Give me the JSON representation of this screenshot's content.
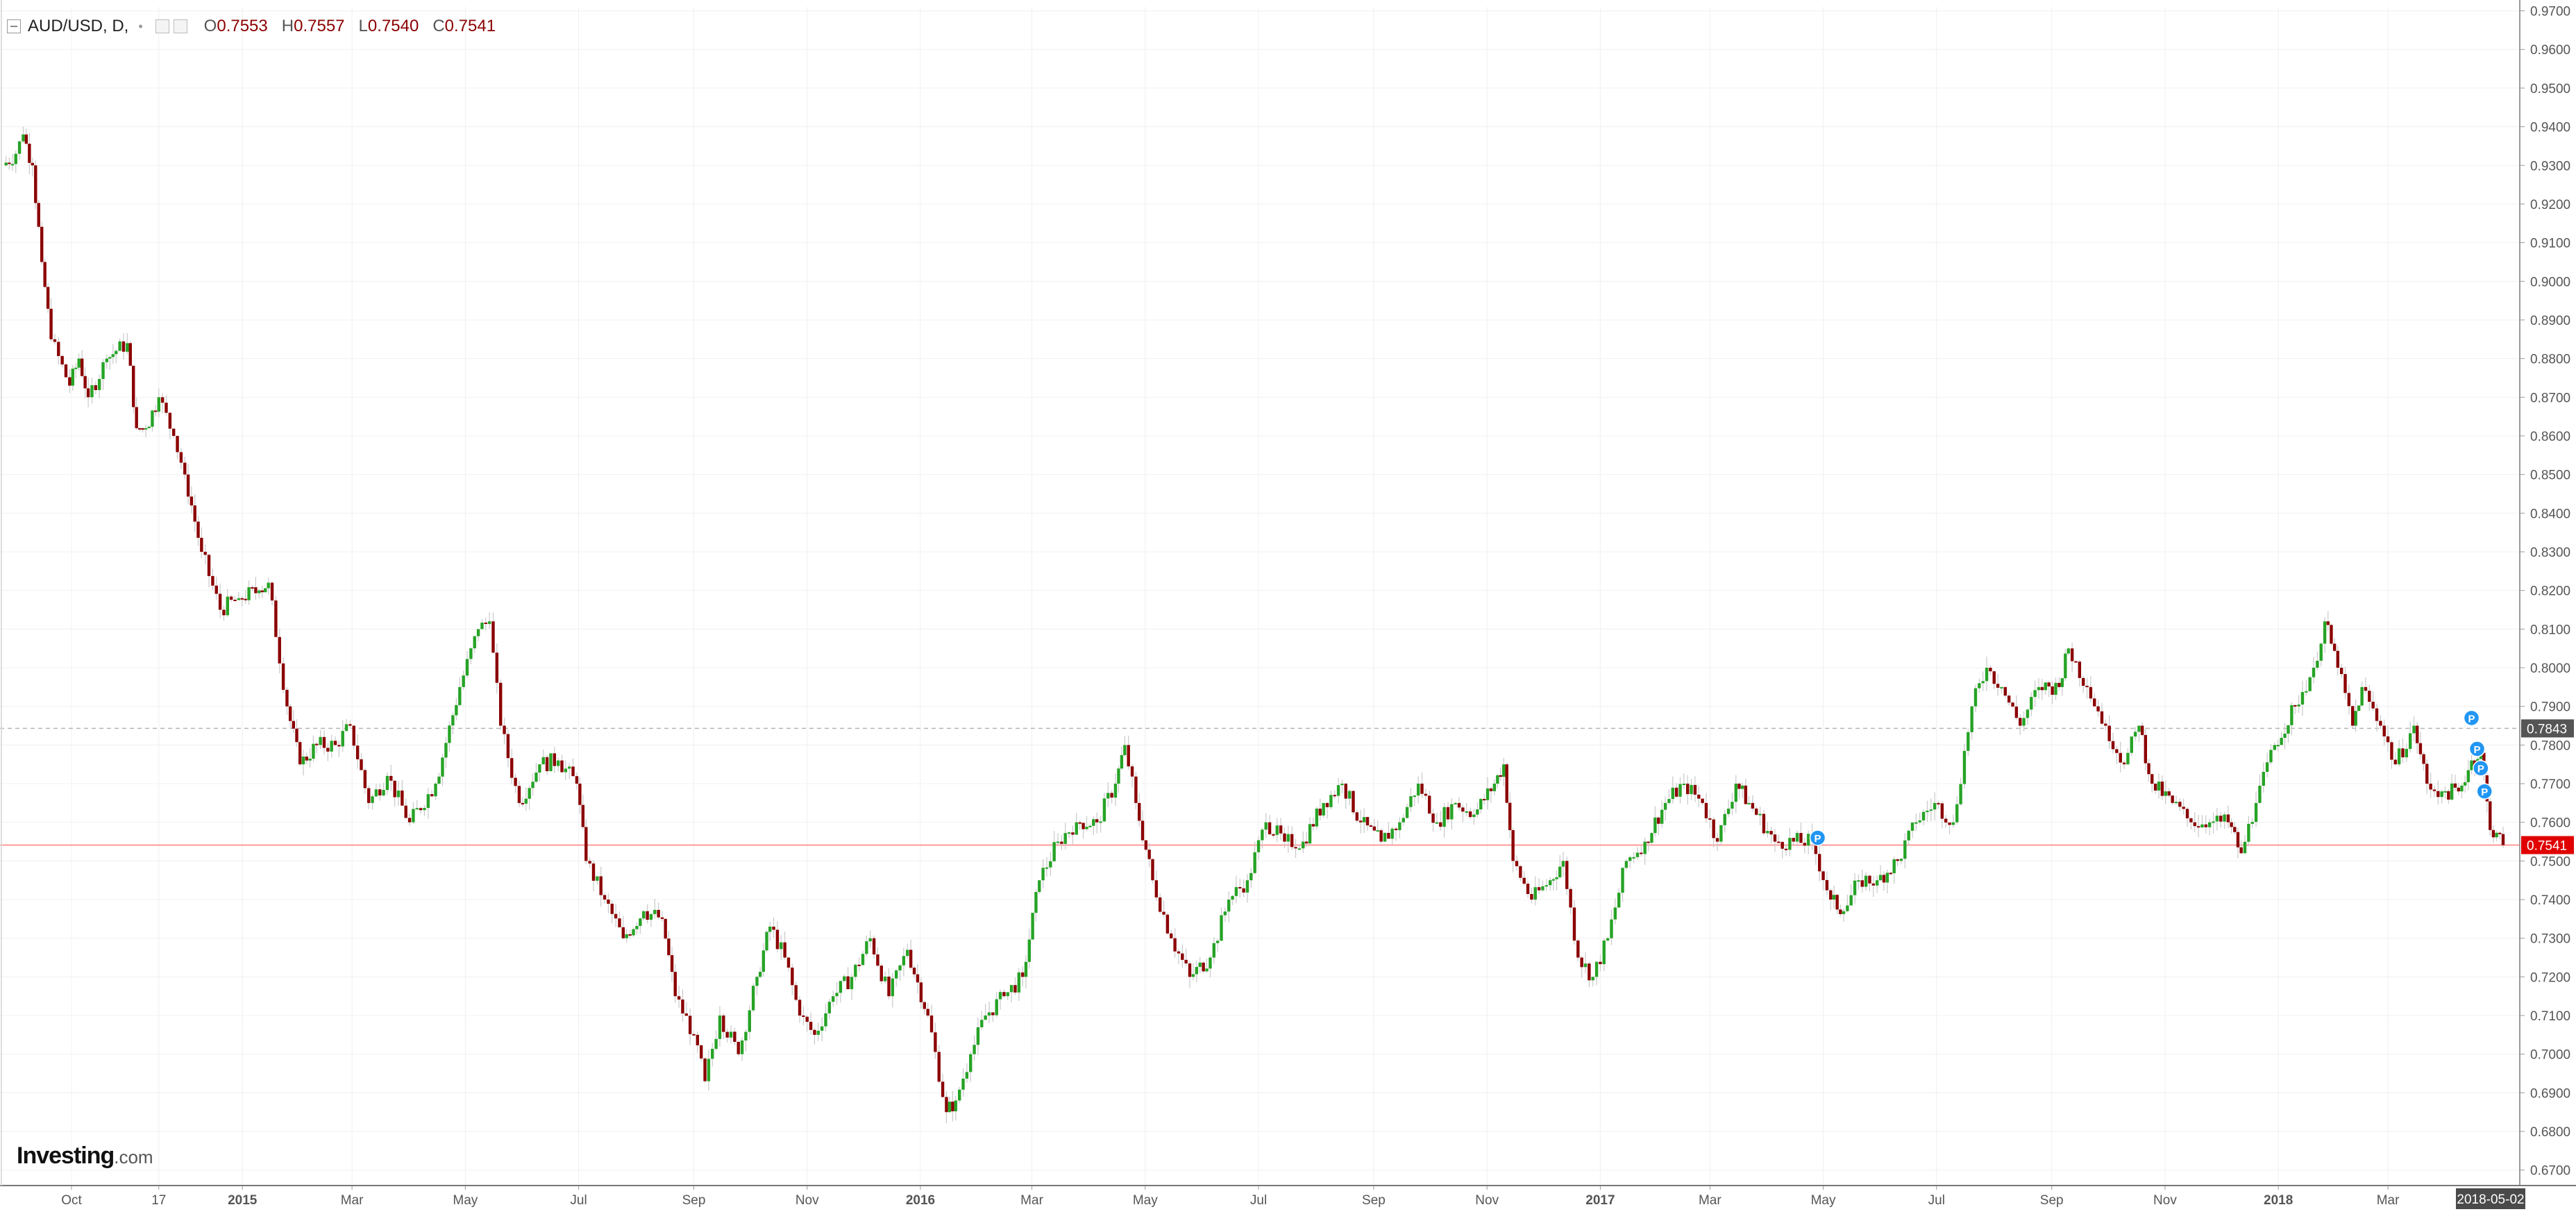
{
  "legend": {
    "symbol": "AUD/USD, D,",
    "open_label": "O",
    "open": "0.7553",
    "high_label": "H",
    "high": "0.7557",
    "low_label": "L",
    "low": "0.7540",
    "close_label": "C",
    "close": "0.7541"
  },
  "logo": {
    "brand": "Investing",
    "suffix": ".com"
  },
  "chart_data": {
    "type": "candlestick",
    "title": "AUD/USD, D,",
    "instrument": "AUD/USD",
    "interval": "D",
    "ylim": [
      0.666,
      0.971
    ],
    "y_axis_side": "right",
    "y_ticks": [
      "0.6700",
      "0.6800",
      "0.6900",
      "0.7000",
      "0.7100",
      "0.7200",
      "0.7300",
      "0.7400",
      "0.7500",
      "0.7600",
      "0.7700",
      "0.7800",
      "0.7900",
      "0.8000",
      "0.8100",
      "0.8200",
      "0.8300",
      "0.8400",
      "0.8500",
      "0.8600",
      "0.8700",
      "0.8800",
      "0.8900",
      "0.9000",
      "0.9100",
      "0.9200",
      "0.9300",
      "0.9400",
      "0.9500",
      "0.9600",
      "0.9700"
    ],
    "x_axis": {
      "start": "2014-08-25",
      "end": "2018-05-02",
      "labels": [
        {
          "date": "2014-10-01",
          "text": "Oct",
          "bold": false
        },
        {
          "date": "2014-11-17",
          "text": "17",
          "bold": false
        },
        {
          "date": "2015-01-01",
          "text": "2015",
          "bold": true
        },
        {
          "date": "2015-03-01",
          "text": "Mar",
          "bold": false
        },
        {
          "date": "2015-05-01",
          "text": "May",
          "bold": false
        },
        {
          "date": "2015-07-01",
          "text": "Jul",
          "bold": false
        },
        {
          "date": "2015-09-01",
          "text": "Sep",
          "bold": false
        },
        {
          "date": "2015-11-01",
          "text": "Nov",
          "bold": false
        },
        {
          "date": "2016-01-01",
          "text": "2016",
          "bold": true
        },
        {
          "date": "2016-03-01",
          "text": "Mar",
          "bold": false
        },
        {
          "date": "2016-05-01",
          "text": "May",
          "bold": false
        },
        {
          "date": "2016-07-01",
          "text": "Jul",
          "bold": false
        },
        {
          "date": "2016-09-01",
          "text": "Sep",
          "bold": false
        },
        {
          "date": "2016-11-01",
          "text": "Nov",
          "bold": false
        },
        {
          "date": "2017-01-01",
          "text": "2017",
          "bold": true
        },
        {
          "date": "2017-03-01",
          "text": "Mar",
          "bold": false
        },
        {
          "date": "2017-05-01",
          "text": "May",
          "bold": false
        },
        {
          "date": "2017-07-01",
          "text": "Jul",
          "bold": false
        },
        {
          "date": "2017-09-01",
          "text": "Sep",
          "bold": false
        },
        {
          "date": "2017-11-01",
          "text": "Nov",
          "bold": false
        },
        {
          "date": "2018-01-01",
          "text": "2018",
          "bold": true
        },
        {
          "date": "2018-03-01",
          "text": "Mar",
          "bold": false
        }
      ],
      "current_label": "2018-05-02"
    },
    "grid": true,
    "last_price": {
      "value": 0.7541,
      "label": "0.7541",
      "color": "#e00000"
    },
    "reference_price": {
      "value": 0.7843,
      "label": "0.7843",
      "color": "#555555"
    },
    "colors": {
      "up": "#26a326",
      "down": "#8b0000",
      "wick": "#c8c8c8",
      "grid": "#f0f0f0",
      "axis_text": "#555555",
      "marker": "#2196f3",
      "last_line": "#ff9a9a",
      "ref_line": "#b5b5b5"
    },
    "markers": [
      {
        "date": "2017-04-28",
        "price": 0.756,
        "text": "P"
      },
      {
        "date": "2018-04-15",
        "price": 0.787,
        "text": "P"
      },
      {
        "date": "2018-04-18",
        "price": 0.779,
        "text": "P"
      },
      {
        "date": "2018-04-20",
        "price": 0.774,
        "text": "P"
      },
      {
        "date": "2018-04-22",
        "price": 0.768,
        "text": "P"
      }
    ],
    "price_path": [
      {
        "date": "2014-08-25",
        "close": 0.93
      },
      {
        "date": "2014-09-01",
        "close": 0.933
      },
      {
        "date": "2014-09-05",
        "close": 0.938
      },
      {
        "date": "2014-09-10",
        "close": 0.93
      },
      {
        "date": "2014-09-15",
        "close": 0.905
      },
      {
        "date": "2014-09-20",
        "close": 0.885
      },
      {
        "date": "2014-09-30",
        "close": 0.873
      },
      {
        "date": "2014-10-05",
        "close": 0.88
      },
      {
        "date": "2014-10-10",
        "close": 0.87
      },
      {
        "date": "2014-10-20",
        "close": 0.88
      },
      {
        "date": "2014-10-25",
        "close": 0.882
      },
      {
        "date": "2014-10-31",
        "close": 0.884
      },
      {
        "date": "2014-11-05",
        "close": 0.862
      },
      {
        "date": "2014-11-10",
        "close": 0.862
      },
      {
        "date": "2014-11-17",
        "close": 0.87
      },
      {
        "date": "2014-11-25",
        "close": 0.86
      },
      {
        "date": "2014-12-01",
        "close": 0.85
      },
      {
        "date": "2014-12-10",
        "close": 0.83
      },
      {
        "date": "2014-12-20",
        "close": 0.815
      },
      {
        "date": "2014-12-30",
        "close": 0.818
      },
      {
        "date": "2015-01-10",
        "close": 0.82
      },
      {
        "date": "2015-01-15",
        "close": 0.822
      },
      {
        "date": "2015-01-25",
        "close": 0.79
      },
      {
        "date": "2015-02-01",
        "close": 0.775
      },
      {
        "date": "2015-02-10",
        "close": 0.78
      },
      {
        "date": "2015-02-20",
        "close": 0.78
      },
      {
        "date": "2015-02-28",
        "close": 0.785
      },
      {
        "date": "2015-03-10",
        "close": 0.765
      },
      {
        "date": "2015-03-20",
        "close": 0.772
      },
      {
        "date": "2015-04-01",
        "close": 0.76
      },
      {
        "date": "2015-04-15",
        "close": 0.77
      },
      {
        "date": "2015-04-28",
        "close": 0.795
      },
      {
        "date": "2015-05-08",
        "close": 0.81
      },
      {
        "date": "2015-05-14",
        "close": 0.812
      },
      {
        "date": "2015-05-20",
        "close": 0.785
      },
      {
        "date": "2015-05-30",
        "close": 0.765
      },
      {
        "date": "2015-06-10",
        "close": 0.775
      },
      {
        "date": "2015-06-20",
        "close": 0.776
      },
      {
        "date": "2015-06-30",
        "close": 0.77
      },
      {
        "date": "2015-07-05",
        "close": 0.75
      },
      {
        "date": "2015-07-15",
        "close": 0.74
      },
      {
        "date": "2015-07-25",
        "close": 0.73
      },
      {
        "date": "2015-08-05",
        "close": 0.737
      },
      {
        "date": "2015-08-15",
        "close": 0.735
      },
      {
        "date": "2015-08-22",
        "close": 0.715
      },
      {
        "date": "2015-09-01",
        "close": 0.705
      },
      {
        "date": "2015-09-07",
        "close": 0.693
      },
      {
        "date": "2015-09-15",
        "close": 0.71
      },
      {
        "date": "2015-09-25",
        "close": 0.7
      },
      {
        "date": "2015-10-05",
        "close": 0.72
      },
      {
        "date": "2015-10-12",
        "close": 0.733
      },
      {
        "date": "2015-10-20",
        "close": 0.725
      },
      {
        "date": "2015-10-28",
        "close": 0.71
      },
      {
        "date": "2015-11-05",
        "close": 0.705
      },
      {
        "date": "2015-11-15",
        "close": 0.715
      },
      {
        "date": "2015-11-25",
        "close": 0.72
      },
      {
        "date": "2015-12-05",
        "close": 0.73
      },
      {
        "date": "2015-12-15",
        "close": 0.715
      },
      {
        "date": "2015-12-25",
        "close": 0.727
      },
      {
        "date": "2016-01-05",
        "close": 0.71
      },
      {
        "date": "2016-01-15",
        "close": 0.685
      },
      {
        "date": "2016-01-20",
        "close": 0.688
      },
      {
        "date": "2016-01-28",
        "close": 0.7
      },
      {
        "date": "2016-02-05",
        "close": 0.71
      },
      {
        "date": "2016-02-15",
        "close": 0.715
      },
      {
        "date": "2016-02-25",
        "close": 0.72
      },
      {
        "date": "2016-03-05",
        "close": 0.745
      },
      {
        "date": "2016-03-15",
        "close": 0.755
      },
      {
        "date": "2016-03-25",
        "close": 0.76
      },
      {
        "date": "2016-04-05",
        "close": 0.76
      },
      {
        "date": "2016-04-15",
        "close": 0.77
      },
      {
        "date": "2016-04-20",
        "close": 0.78
      },
      {
        "date": "2016-04-26",
        "close": 0.765
      },
      {
        "date": "2016-05-05",
        "close": 0.745
      },
      {
        "date": "2016-05-15",
        "close": 0.73
      },
      {
        "date": "2016-05-25",
        "close": 0.72
      },
      {
        "date": "2016-06-05",
        "close": 0.725
      },
      {
        "date": "2016-06-15",
        "close": 0.74
      },
      {
        "date": "2016-06-25",
        "close": 0.745
      },
      {
        "date": "2016-07-05",
        "close": 0.76
      },
      {
        "date": "2016-07-15",
        "close": 0.755
      },
      {
        "date": "2016-07-25",
        "close": 0.755
      },
      {
        "date": "2016-08-05",
        "close": 0.765
      },
      {
        "date": "2016-08-15",
        "close": 0.77
      },
      {
        "date": "2016-08-25",
        "close": 0.76
      },
      {
        "date": "2016-09-05",
        "close": 0.755
      },
      {
        "date": "2016-09-15",
        "close": 0.76
      },
      {
        "date": "2016-09-25",
        "close": 0.77
      },
      {
        "date": "2016-10-05",
        "close": 0.76
      },
      {
        "date": "2016-10-15",
        "close": 0.765
      },
      {
        "date": "2016-10-25",
        "close": 0.762
      },
      {
        "date": "2016-11-05",
        "close": 0.77
      },
      {
        "date": "2016-11-10",
        "close": 0.775
      },
      {
        "date": "2016-11-15",
        "close": 0.75
      },
      {
        "date": "2016-11-25",
        "close": 0.74
      },
      {
        "date": "2016-12-05",
        "close": 0.745
      },
      {
        "date": "2016-12-12",
        "close": 0.75
      },
      {
        "date": "2016-12-20",
        "close": 0.725
      },
      {
        "date": "2016-12-28",
        "close": 0.72
      },
      {
        "date": "2017-01-05",
        "close": 0.73
      },
      {
        "date": "2017-01-15",
        "close": 0.75
      },
      {
        "date": "2017-01-25",
        "close": 0.755
      },
      {
        "date": "2017-02-05",
        "close": 0.765
      },
      {
        "date": "2017-02-15",
        "close": 0.77
      },
      {
        "date": "2017-02-25",
        "close": 0.765
      },
      {
        "date": "2017-03-05",
        "close": 0.755
      },
      {
        "date": "2017-03-15",
        "close": 0.77
      },
      {
        "date": "2017-03-22",
        "close": 0.765
      },
      {
        "date": "2017-04-05",
        "close": 0.755
      },
      {
        "date": "2017-04-15",
        "close": 0.755
      },
      {
        "date": "2017-04-25",
        "close": 0.755
      },
      {
        "date": "2017-05-05",
        "close": 0.74
      },
      {
        "date": "2017-05-12",
        "close": 0.737
      },
      {
        "date": "2017-05-20",
        "close": 0.745
      },
      {
        "date": "2017-05-30",
        "close": 0.745
      },
      {
        "date": "2017-06-10",
        "close": 0.75
      },
      {
        "date": "2017-06-20",
        "close": 0.76
      },
      {
        "date": "2017-06-30",
        "close": 0.765
      },
      {
        "date": "2017-07-10",
        "close": 0.76
      },
      {
        "date": "2017-07-20",
        "close": 0.79
      },
      {
        "date": "2017-07-28",
        "close": 0.8
      },
      {
        "date": "2017-08-05",
        "close": 0.795
      },
      {
        "date": "2017-08-15",
        "close": 0.785
      },
      {
        "date": "2017-08-25",
        "close": 0.795
      },
      {
        "date": "2017-09-05",
        "close": 0.795
      },
      {
        "date": "2017-09-10",
        "close": 0.805
      },
      {
        "date": "2017-09-20",
        "close": 0.795
      },
      {
        "date": "2017-09-30",
        "close": 0.785
      },
      {
        "date": "2017-10-10",
        "close": 0.775
      },
      {
        "date": "2017-10-18",
        "close": 0.785
      },
      {
        "date": "2017-10-25",
        "close": 0.77
      },
      {
        "date": "2017-11-05",
        "close": 0.765
      },
      {
        "date": "2017-11-15",
        "close": 0.76
      },
      {
        "date": "2017-11-25",
        "close": 0.76
      },
      {
        "date": "2017-12-05",
        "close": 0.76
      },
      {
        "date": "2017-12-12",
        "close": 0.752
      },
      {
        "date": "2017-12-20",
        "close": 0.765
      },
      {
        "date": "2017-12-30",
        "close": 0.78
      },
      {
        "date": "2018-01-10",
        "close": 0.79
      },
      {
        "date": "2018-01-20",
        "close": 0.8
      },
      {
        "date": "2018-01-26",
        "close": 0.812
      },
      {
        "date": "2018-02-02",
        "close": 0.8
      },
      {
        "date": "2018-02-10",
        "close": 0.785
      },
      {
        "date": "2018-02-15",
        "close": 0.795
      },
      {
        "date": "2018-02-25",
        "close": 0.785
      },
      {
        "date": "2018-03-05",
        "close": 0.775
      },
      {
        "date": "2018-03-15",
        "close": 0.785
      },
      {
        "date": "2018-03-22",
        "close": 0.77
      },
      {
        "date": "2018-03-30",
        "close": 0.768
      },
      {
        "date": "2018-04-08",
        "close": 0.768
      },
      {
        "date": "2018-04-15",
        "close": 0.776
      },
      {
        "date": "2018-04-20",
        "close": 0.778
      },
      {
        "date": "2018-04-25",
        "close": 0.758
      },
      {
        "date": "2018-05-02",
        "close": 0.7541
      }
    ]
  }
}
